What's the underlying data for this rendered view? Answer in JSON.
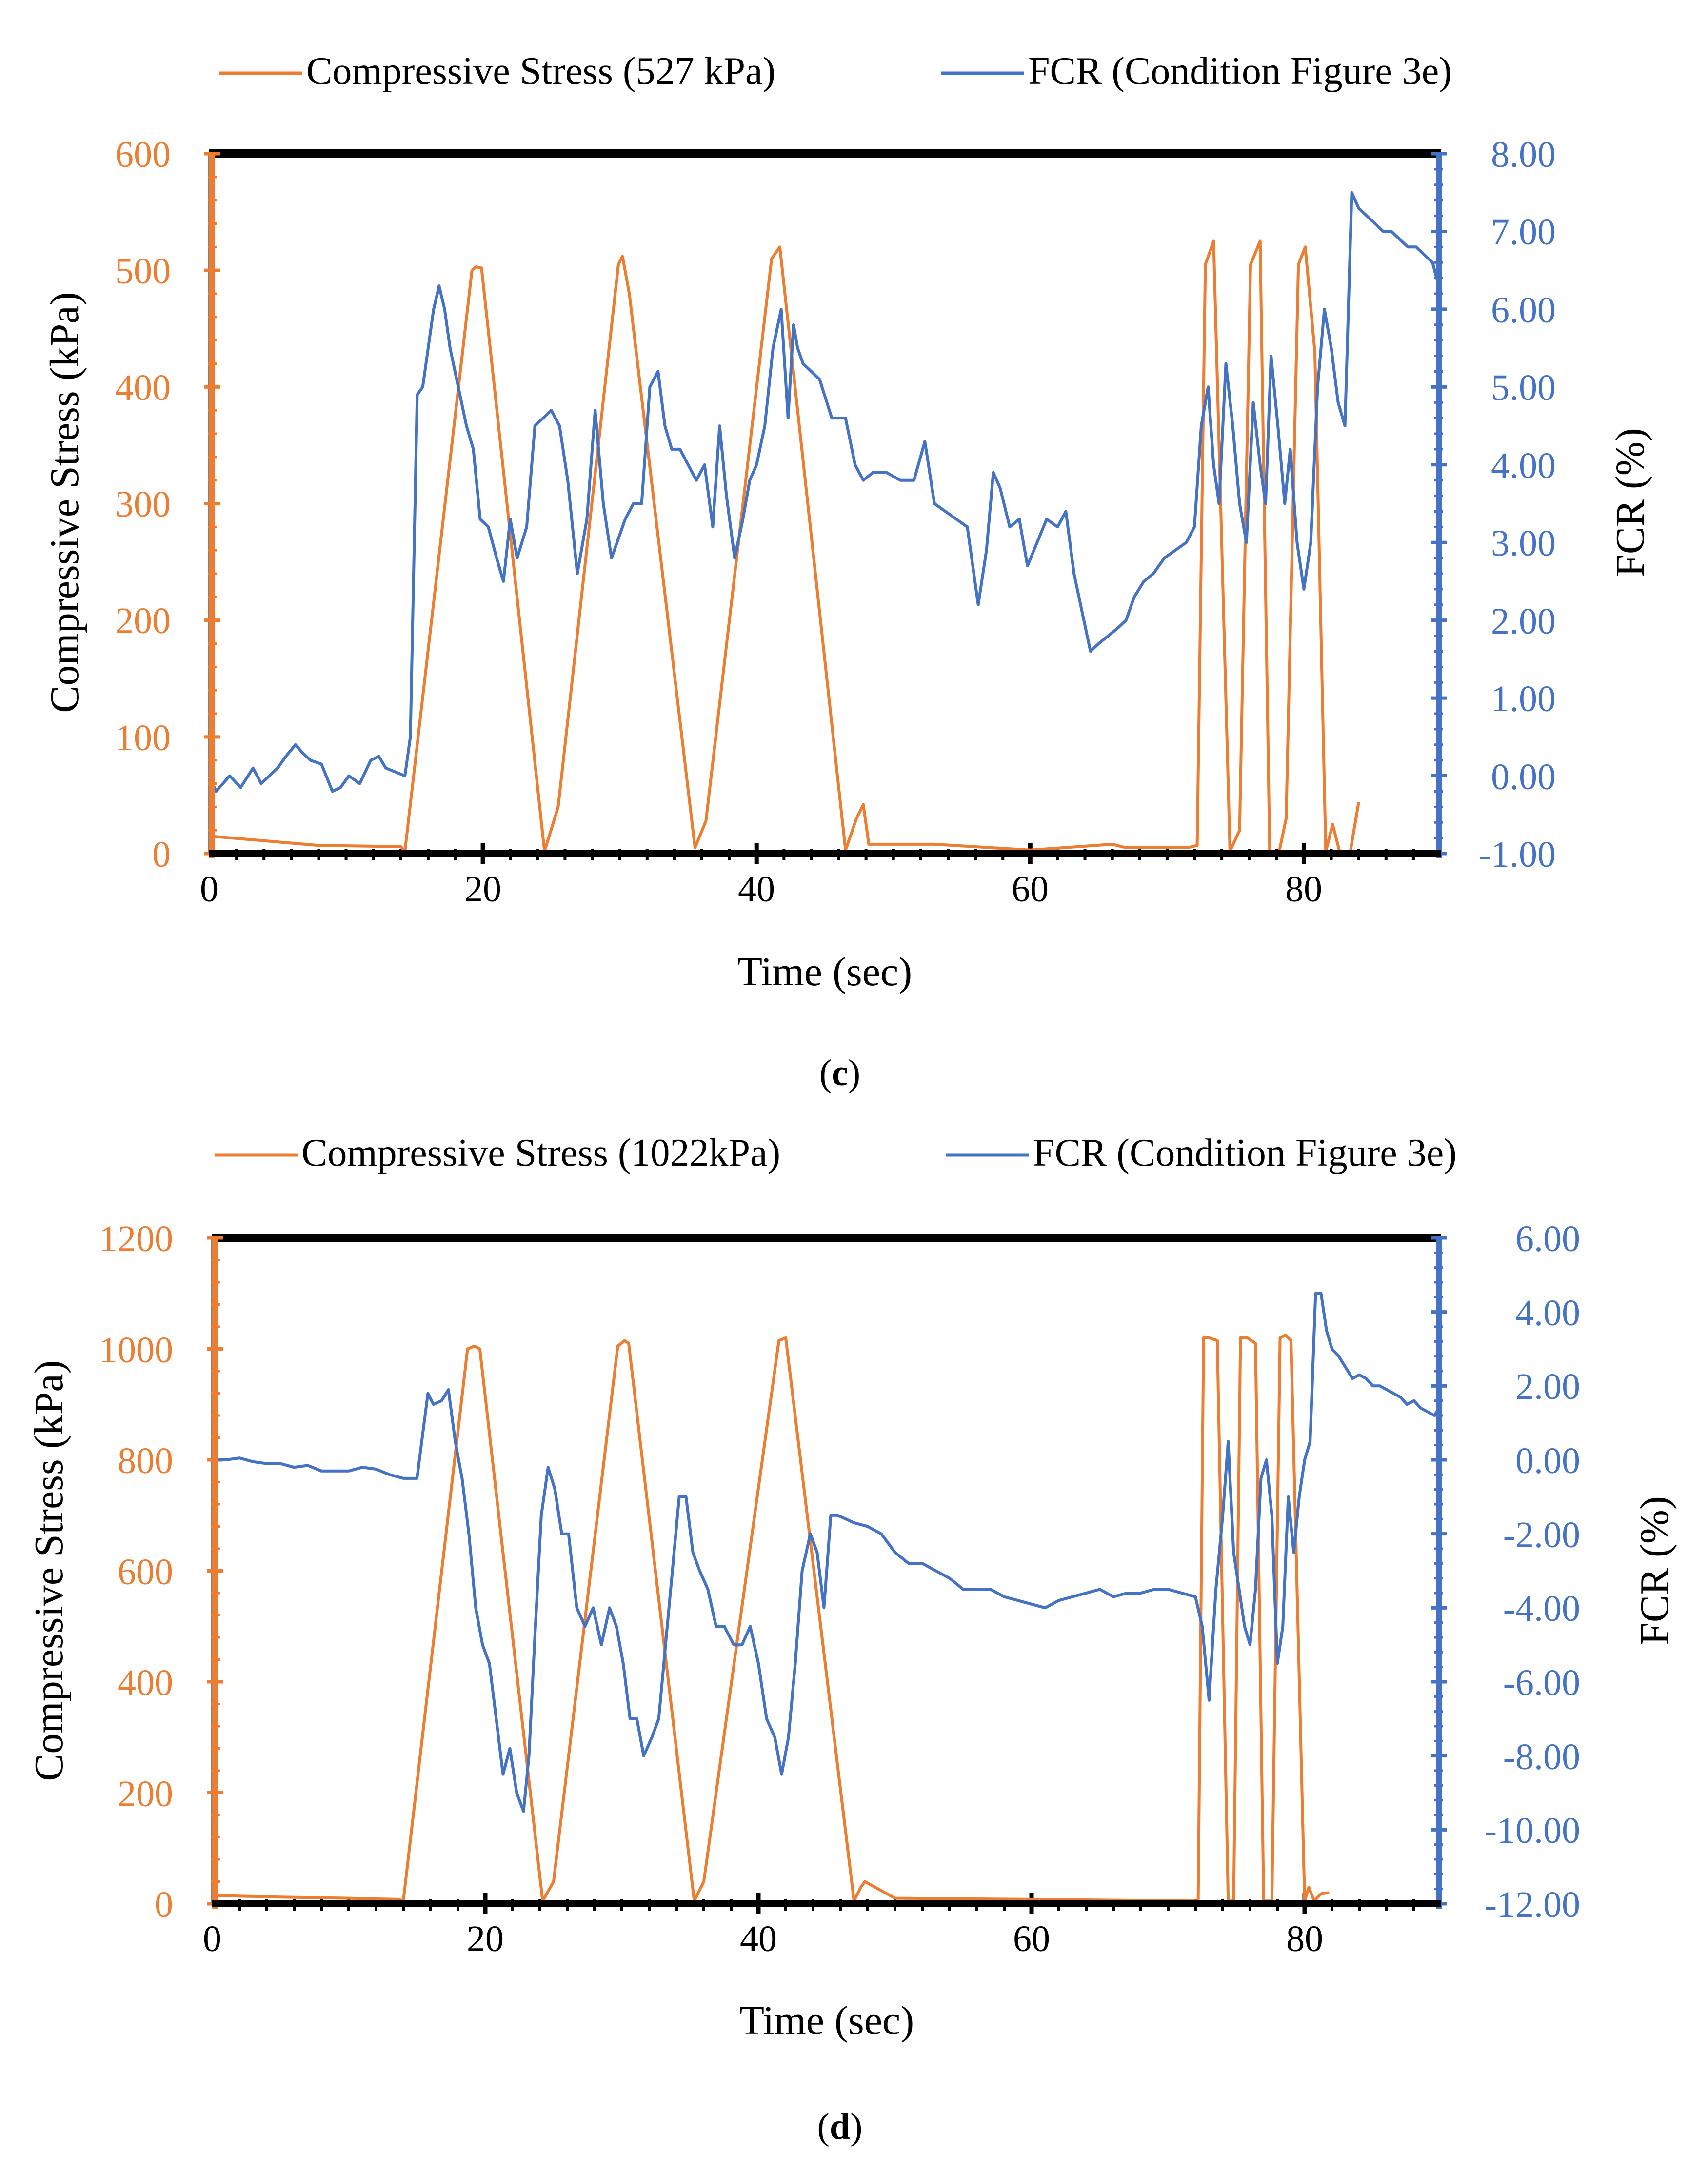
{
  "colors": {
    "stress": "#ED7D31",
    "fcr": "#4472C4",
    "frame": "#000000",
    "text": "#000000"
  },
  "chart_data": [
    {
      "type": "line",
      "panel_label": "c",
      "xlabel": "Time (sec)",
      "ylabel_left": "Compressive Stress (kPa)",
      "ylabel_right": "FCR (%)",
      "xlim": [
        0,
        90
      ],
      "ylim_left": [
        0,
        600
      ],
      "ylim_right": [
        -1,
        8
      ],
      "x_ticks": [
        "0",
        "20",
        "40",
        "60",
        "80"
      ],
      "y_ticks_left": [
        "0",
        "100",
        "200",
        "300",
        "400",
        "500",
        "600"
      ],
      "y_ticks_right": [
        "-1.00",
        "0.00",
        "1.00",
        "2.00",
        "3.00",
        "4.00",
        "5.00",
        "6.00",
        "7.00",
        "8.00"
      ],
      "legend": [
        "Compressive Stress (527 kPa)",
        "FCR (Condition Figure 3e)"
      ],
      "series": [
        {
          "name": "Compressive Stress (527 kPa)",
          "axis": "left",
          "x": [
            0,
            5,
            8,
            14,
            14.3,
            19.2,
            19.5,
            19.9,
            24.5,
            25.5,
            29.9,
            30.2,
            30.7,
            35.5,
            36.3,
            41.1,
            41.7,
            46.5,
            47.3,
            47.8,
            48.2,
            53,
            60,
            66,
            67,
            71.5,
            72.2,
            72.8,
            73.4,
            74.6,
            75.3,
            76.1,
            76.8,
            77.5,
            78.2,
            78.7,
            79.6,
            80.1,
            80.8,
            81.6,
            82.1,
            82.6,
            83.4,
            84
          ],
          "y": [
            15,
            10,
            7,
            6,
            2,
            500,
            503,
            502,
            2,
            40,
            505,
            512,
            480,
            5,
            28,
            510,
            520,
            3,
            30,
            42,
            8,
            8,
            3,
            8,
            5,
            5,
            7,
            505,
            525,
            2,
            20,
            505,
            525,
            2,
            2,
            30,
            505,
            520,
            430,
            2,
            25,
            2,
            2,
            44
          ]
        },
        {
          "name": "FCR (Condition Figure 3e)",
          "axis": "right",
          "x": [
            0,
            0.5,
            1.5,
            2.3,
            3.2,
            3.8,
            4.4,
            5,
            5.6,
            6.3,
            6.8,
            7.4,
            8.2,
            9,
            9.6,
            10.2,
            11,
            11.8,
            12.4,
            12.9,
            13.6,
            14.3,
            14.7,
            15.2,
            15.6,
            16,
            16.4,
            16.8,
            17.2,
            17.6,
            18.2,
            18.8,
            19.3,
            19.8,
            20.4,
            21,
            21.5,
            22,
            22.5,
            23.2,
            23.8,
            24.4,
            25,
            25.6,
            26.2,
            26.9,
            27.6,
            28.2,
            28.8,
            29.4,
            29.8,
            30.4,
            31,
            31.6,
            32.2,
            32.8,
            33.3,
            33.8,
            34.4,
            35,
            35.6,
            36.2,
            36.8,
            37.3,
            37.8,
            38.4,
            39,
            39.5,
            40,
            40.6,
            41.2,
            41.8,
            42.3,
            42.7,
            43,
            43.4,
            44,
            44.6,
            45.5,
            46.5,
            47.2,
            47.8,
            48.5,
            49.5,
            50.5,
            51.5,
            52.3,
            53,
            53.8,
            54.6,
            55.4,
            56.2,
            56.8,
            57.3,
            57.8,
            58.5,
            59.2,
            59.8,
            60.5,
            61.2,
            62,
            62.6,
            63.2,
            63.8,
            64.4,
            65,
            65.7,
            66.4,
            67,
            67.6,
            68.3,
            69,
            69.8,
            70.6,
            71.4,
            72,
            72.5,
            73,
            73.4,
            73.8,
            74.3,
            74.8,
            75.3,
            75.8,
            76.3,
            76.8,
            77.2,
            77.6,
            78.1,
            78.6,
            79,
            79.5,
            80,
            80.5,
            81,
            81.5,
            82,
            82.5,
            83,
            83.5,
            84,
            84.6,
            85.2,
            85.8,
            86.4,
            87,
            87.6,
            88.2,
            88.8,
            89.4,
            90
          ],
          "y": [
            0.0,
            -0.2,
            0.0,
            -0.15,
            0.1,
            -0.1,
            0.0,
            0.1,
            0.25,
            0.4,
            0.3,
            0.2,
            0.15,
            -0.2,
            -0.15,
            0.0,
            -0.1,
            0.2,
            0.25,
            0.1,
            0.05,
            0.0,
            0.5,
            4.9,
            5.0,
            5.5,
            6.0,
            6.3,
            6.0,
            5.5,
            5.0,
            4.5,
            4.2,
            3.3,
            3.2,
            2.8,
            2.5,
            3.3,
            2.8,
            3.2,
            4.5,
            4.6,
            4.7,
            4.5,
            3.8,
            2.6,
            3.3,
            4.7,
            3.5,
            2.8,
            3.0,
            3.3,
            3.5,
            3.5,
            5.0,
            5.2,
            4.5,
            4.2,
            4.2,
            4.0,
            3.8,
            4.0,
            3.2,
            4.5,
            3.6,
            2.8,
            3.3,
            3.8,
            4.0,
            4.5,
            5.5,
            6.0,
            4.6,
            5.8,
            5.5,
            5.3,
            5.2,
            5.1,
            4.6,
            4.6,
            4.0,
            3.8,
            3.9,
            3.9,
            3.8,
            3.8,
            4.3,
            3.5,
            3.4,
            3.3,
            3.2,
            2.2,
            2.9,
            3.9,
            3.7,
            3.2,
            3.3,
            2.7,
            3.0,
            3.3,
            3.2,
            3.4,
            2.6,
            2.1,
            1.6,
            1.7,
            1.8,
            1.9,
            2.0,
            2.3,
            2.5,
            2.6,
            2.8,
            2.9,
            3.0,
            3.2,
            4.5,
            5.0,
            4.0,
            3.5,
            5.3,
            4.5,
            3.5,
            3.0,
            4.8,
            4.0,
            3.5,
            5.4,
            4.5,
            3.5,
            4.2,
            3.0,
            2.4,
            3.0,
            5.0,
            6.0,
            5.5,
            4.8,
            4.5,
            7.5,
            7.3,
            7.2,
            7.1,
            7.0,
            7.0,
            6.9,
            6.8,
            6.8,
            6.7,
            6.6,
            6.2
          ]
        }
      ]
    },
    {
      "type": "line",
      "panel_label": "d",
      "xlabel": "Time (sec)",
      "ylabel_left": "Compressive Stress (kPa)",
      "ylabel_right": "FCR (%)",
      "xlim": [
        0,
        90
      ],
      "ylim_left": [
        0,
        1200
      ],
      "ylim_right": [
        -12,
        6
      ],
      "x_ticks": [
        "0",
        "20",
        "40",
        "60",
        "80"
      ],
      "y_ticks_left": [
        "0",
        "200",
        "400",
        "600",
        "800",
        "1000",
        "1200"
      ],
      "y_ticks_right": [
        "-12.00",
        "-10.00",
        "-8.00",
        "-6.00",
        "-4.00",
        "-2.00",
        "0.00",
        "2.00",
        "4.00",
        "6.00"
      ],
      "legend": [
        "Compressive Stress (1022kPa)",
        "FCR (Condition Figure 3e)"
      ],
      "series": [
        {
          "name": "Compressive Stress (1022kPa)",
          "axis": "left",
          "x": [
            0,
            5,
            10,
            13.5,
            14,
            18.7,
            19.2,
            19.6,
            24.2,
            25,
            29.7,
            30.2,
            30.5,
            35.3,
            36,
            41.5,
            42,
            47,
            47.5,
            47.8,
            50,
            60,
            72.2,
            72.6,
            73,
            73.6,
            74.4,
            74.8,
            75.3,
            75.8,
            76.4,
            77,
            77.6,
            78.2,
            78.6,
            79,
            80,
            80.3,
            80.7,
            81.2,
            81.8
          ],
          "y": [
            15,
            12,
            10,
            8,
            6,
            1000,
            1005,
            1000,
            5,
            40,
            1005,
            1015,
            1010,
            5,
            40,
            1015,
            1020,
            5,
            30,
            40,
            10,
            8,
            5,
            1020,
            1020,
            1015,
            5,
            5,
            1020,
            1020,
            1010,
            5,
            5,
            1020,
            1025,
            1015,
            5,
            30,
            5,
            18,
            20
          ]
        },
        {
          "name": "FCR (Condition Figure 3e)",
          "axis": "right",
          "x": [
            0,
            1,
            2,
            3,
            4,
            5,
            6,
            7,
            8,
            9,
            10,
            11,
            12,
            13,
            14,
            15,
            15.8,
            16.2,
            16.8,
            17.3,
            17.8,
            18.3,
            18.8,
            19.3,
            19.8,
            20.3,
            20.8,
            21.3,
            21.8,
            22.3,
            22.8,
            23.2,
            23.6,
            24.1,
            24.6,
            25.1,
            25.6,
            26.1,
            26.7,
            27.3,
            27.9,
            28.5,
            29.1,
            29.6,
            30.1,
            30.6,
            31.1,
            31.6,
            32.2,
            32.7,
            33.2,
            33.7,
            34.2,
            34.7,
            35.2,
            35.7,
            36.3,
            36.9,
            37.5,
            38.2,
            38.8,
            39.4,
            40,
            40.6,
            41.2,
            41.7,
            42.2,
            42.7,
            43.2,
            43.8,
            44.3,
            44.8,
            45.3,
            45.8,
            46.4,
            47,
            48,
            49,
            50,
            51,
            52,
            53,
            54,
            55,
            56,
            57,
            58,
            59,
            60,
            61,
            62,
            63,
            64,
            65,
            66,
            67,
            68,
            69,
            70,
            71,
            72,
            72.5,
            73,
            73.5,
            74,
            74.4,
            74.8,
            75.2,
            75.6,
            76,
            76.4,
            76.8,
            77.2,
            77.6,
            78,
            78.4,
            78.8,
            79.2,
            79.6,
            80,
            80.4,
            80.8,
            81.2,
            81.6,
            82,
            82.5,
            83,
            83.5,
            84,
            84.5,
            85,
            85.5,
            86,
            86.5,
            87,
            87.5,
            88,
            88.5,
            89,
            89.5,
            90
          ],
          "y": [
            0.0,
            0.0,
            0.05,
            -0.05,
            -0.1,
            -0.1,
            -0.2,
            -0.15,
            -0.3,
            -0.3,
            -0.3,
            -0.2,
            -0.25,
            -0.4,
            -0.5,
            -0.5,
            1.8,
            1.5,
            1.6,
            1.9,
            0.5,
            -0.5,
            -2.0,
            -4.0,
            -5.0,
            -5.5,
            -7.0,
            -8.5,
            -7.8,
            -9.0,
            -9.5,
            -8.0,
            -5.0,
            -1.5,
            -0.2,
            -0.8,
            -2.0,
            -2.0,
            -4.0,
            -4.5,
            -4.0,
            -5.0,
            -4.0,
            -4.5,
            -5.5,
            -7.0,
            -7.0,
            -8.0,
            -7.5,
            -7.0,
            -5.0,
            -3.0,
            -1.0,
            -1.0,
            -2.5,
            -3.0,
            -3.5,
            -4.5,
            -4.5,
            -5.0,
            -5.0,
            -4.5,
            -5.5,
            -7.0,
            -7.5,
            -8.5,
            -7.5,
            -5.5,
            -3.0,
            -2.0,
            -2.5,
            -4.0,
            -1.5,
            -1.5,
            -1.6,
            -1.7,
            -1.8,
            -2.0,
            -2.5,
            -2.8,
            -2.8,
            -3.0,
            -3.2,
            -3.5,
            -3.5,
            -3.5,
            -3.7,
            -3.8,
            -3.9,
            -4.0,
            -3.8,
            -3.7,
            -3.6,
            -3.5,
            -3.7,
            -3.6,
            -3.6,
            -3.5,
            -3.5,
            -3.6,
            -3.7,
            -4.5,
            -6.5,
            -3.5,
            -1.5,
            0.5,
            -2.5,
            -3.5,
            -4.5,
            -5.0,
            -3.5,
            -0.5,
            0.0,
            -1.5,
            -5.5,
            -4.5,
            -1.0,
            -2.5,
            -1.0,
            0.0,
            0.5,
            4.5,
            4.5,
            3.5,
            3.0,
            2.8,
            2.5,
            2.2,
            2.3,
            2.2,
            2.0,
            2.0,
            1.9,
            1.8,
            1.7,
            1.5,
            1.6,
            1.4,
            1.3,
            1.2,
            1.5
          ]
        }
      ]
    }
  ]
}
